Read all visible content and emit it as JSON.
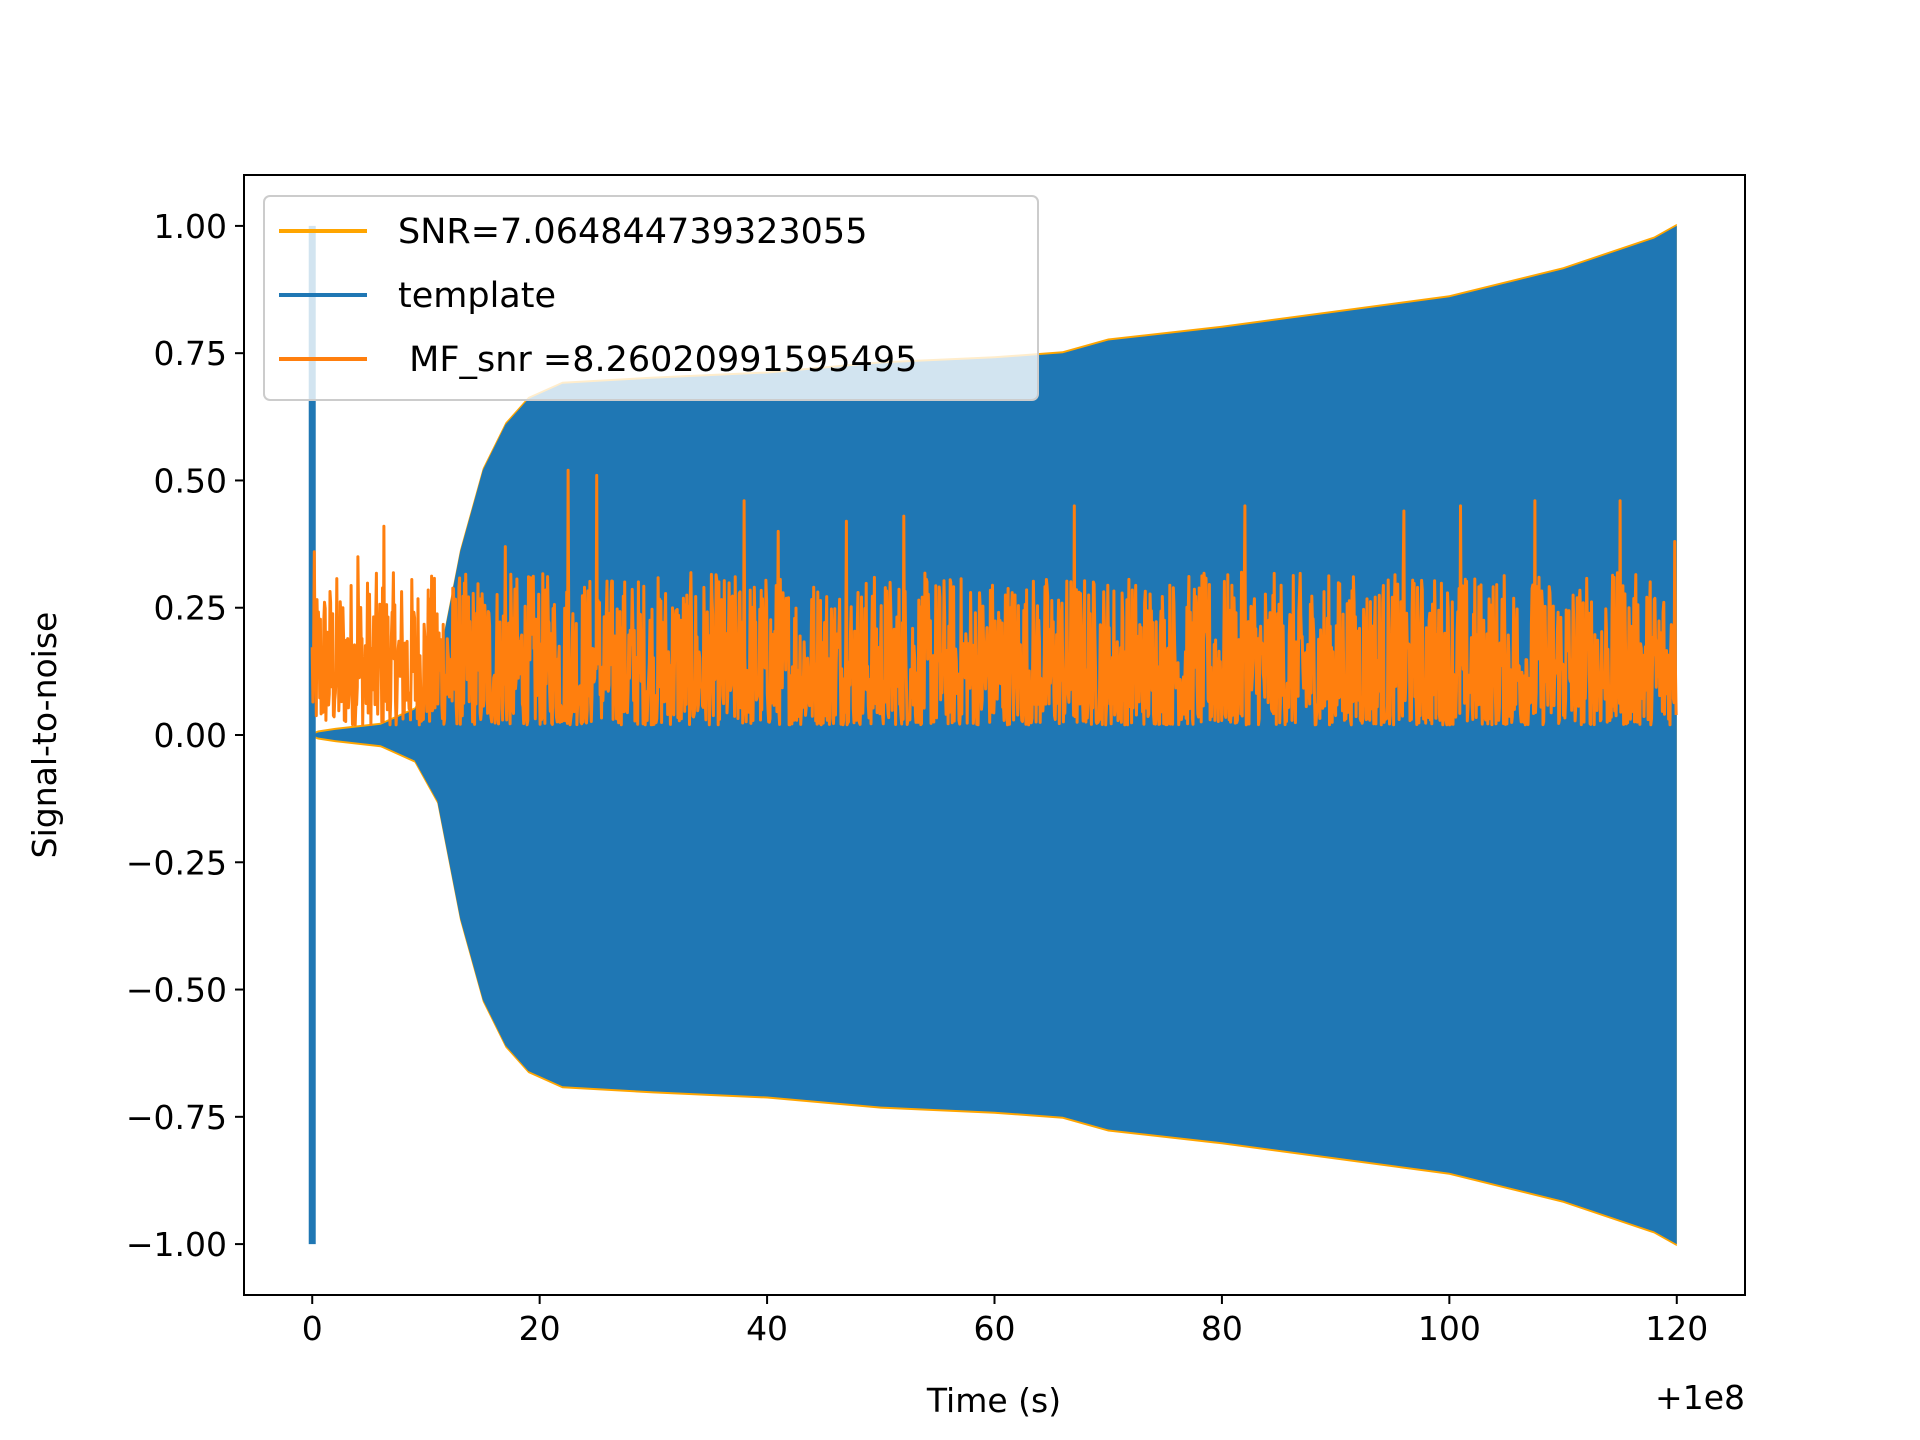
{
  "chart_data": {
    "type": "line",
    "xlabel": "Time (s)",
    "ylabel": "Signal-to-noise",
    "x_offset_label": "+1e8",
    "xlim": [
      -6,
      126
    ],
    "ylim": [
      -1.1,
      1.1
    ],
    "x_ticks": [
      0,
      20,
      40,
      60,
      80,
      100,
      120
    ],
    "y_ticks": [
      -1.0,
      -0.75,
      -0.5,
      -0.25,
      0.0,
      0.25,
      0.5,
      0.75,
      1.0
    ],
    "y_tick_labels": [
      "−1.00",
      "−0.75",
      "−0.50",
      "−0.25",
      "0.00",
      "0.25",
      "0.50",
      "0.75",
      "1.00"
    ],
    "x_tick_labels": [
      "0",
      "20",
      "40",
      "60",
      "80",
      "100",
      "120"
    ],
    "legend_position": "upper left",
    "series": [
      {
        "name": "SNR=7.064844739323055",
        "color": "#ffa500",
        "kind": "envelope",
        "x": [
          0,
          0.5,
          2,
          6,
          9,
          11,
          13,
          15,
          17,
          19,
          22,
          30,
          40,
          50,
          60,
          66,
          70,
          80,
          90,
          100,
          110,
          118,
          120
        ],
        "upper": [
          0.0,
          0.005,
          0.01,
          0.02,
          0.05,
          0.13,
          0.36,
          0.52,
          0.61,
          0.66,
          0.69,
          0.7,
          0.71,
          0.73,
          0.74,
          0.75,
          0.775,
          0.8,
          0.83,
          0.86,
          0.915,
          0.975,
          1.0
        ],
        "lower": [
          0.0,
          -0.005,
          -0.01,
          -0.02,
          -0.05,
          -0.13,
          -0.36,
          -0.52,
          -0.61,
          -0.66,
          -0.69,
          -0.7,
          -0.71,
          -0.73,
          -0.74,
          -0.75,
          -0.775,
          -0.8,
          -0.83,
          -0.86,
          -0.915,
          -0.975,
          -1.0
        ]
      },
      {
        "name": "template",
        "color": "#1f77b4",
        "kind": "envelope",
        "x": [
          0,
          0.5,
          2,
          6,
          9,
          11,
          13,
          15,
          17,
          19,
          22,
          30,
          40,
          50,
          60,
          66,
          70,
          80,
          90,
          100,
          110,
          118,
          120
        ],
        "upper": [
          0.0,
          0.005,
          0.01,
          0.02,
          0.05,
          0.13,
          0.36,
          0.52,
          0.61,
          0.66,
          0.69,
          0.7,
          0.71,
          0.73,
          0.74,
          0.75,
          0.775,
          0.8,
          0.83,
          0.86,
          0.915,
          0.975,
          1.0
        ],
        "lower": [
          0.0,
          -0.005,
          -0.01,
          -0.02,
          -0.05,
          -0.13,
          -0.36,
          -0.52,
          -0.61,
          -0.66,
          -0.69,
          -0.7,
          -0.71,
          -0.73,
          -0.74,
          -0.75,
          -0.775,
          -0.8,
          -0.83,
          -0.86,
          -0.915,
          -0.975,
          -1.0
        ],
        "spike": {
          "x": 0.0,
          "min": -1.0,
          "max": 1.0
        }
      },
      {
        "name": " MF_snr =8.26020991595495",
        "color": "#ff7f0e",
        "kind": "noise",
        "x_range": [
          0,
          120
        ],
        "baseline_range": [
          0.0,
          0.3
        ],
        "peaks": [
          {
            "x": 0.2,
            "y": 0.36
          },
          {
            "x": 4.0,
            "y": 0.35
          },
          {
            "x": 6.3,
            "y": 0.41
          },
          {
            "x": 17.0,
            "y": 0.37
          },
          {
            "x": 22.5,
            "y": 0.52
          },
          {
            "x": 25.0,
            "y": 0.51
          },
          {
            "x": 38.0,
            "y": 0.46
          },
          {
            "x": 41.0,
            "y": 0.4
          },
          {
            "x": 47.0,
            "y": 0.42
          },
          {
            "x": 52.0,
            "y": 0.43
          },
          {
            "x": 67.0,
            "y": 0.45
          },
          {
            "x": 82.0,
            "y": 0.45
          },
          {
            "x": 96.0,
            "y": 0.44
          },
          {
            "x": 101.0,
            "y": 0.45
          },
          {
            "x": 107.5,
            "y": 0.46
          },
          {
            "x": 115.0,
            "y": 0.46
          },
          {
            "x": 119.8,
            "y": 0.38
          }
        ]
      }
    ]
  }
}
